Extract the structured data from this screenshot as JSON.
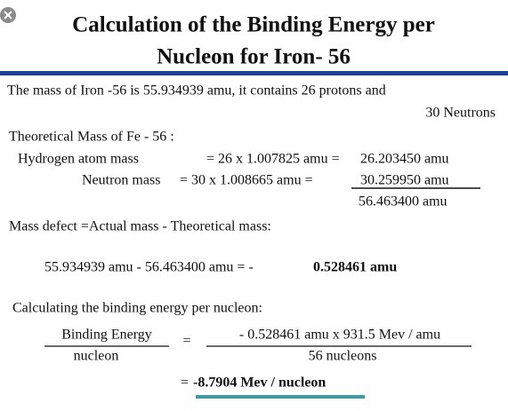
{
  "header": {
    "title": [
      "Calculation of the Binding Energy per",
      "Nucleon for Iron- 56"
    ]
  },
  "intro": [
    "The mass of Iron -56 is 55.934939 amu, it contains 26 protons and",
    "30 Neutrons"
  ],
  "theoretical": {
    "heading": "Theoretical Mass of Fe - 56 :",
    "hydrogen": {
      "label": "Hydrogen atom mass",
      "calc": "= 26 x 1.007825 amu =",
      "result": "26.203450 amu"
    },
    "neutron": {
      "label": "Neutron mass",
      "calc": "= 30 x 1.008665 amu =",
      "result": "30.259950 amu"
    },
    "total": "56.463400 amu"
  },
  "mass_defect": {
    "definition": "Mass defect =Actual mass - Theoretical mass:",
    "calc": "55.934939 amu - 56.463400 amu = -",
    "result": "0.528461 amu"
  },
  "binding": {
    "heading": "Calculating the binding energy per nucleon:",
    "numerator": "Binding Energy",
    "denominator": "nucleon",
    "equals": "=",
    "rhs_numerator": "- 0.528461 amu x 931.5 Mev / amu",
    "rhs_denominator": "56 nucleons",
    "result_prefix": "=",
    "result": "-8.7904 Mev / nucleon"
  }
}
